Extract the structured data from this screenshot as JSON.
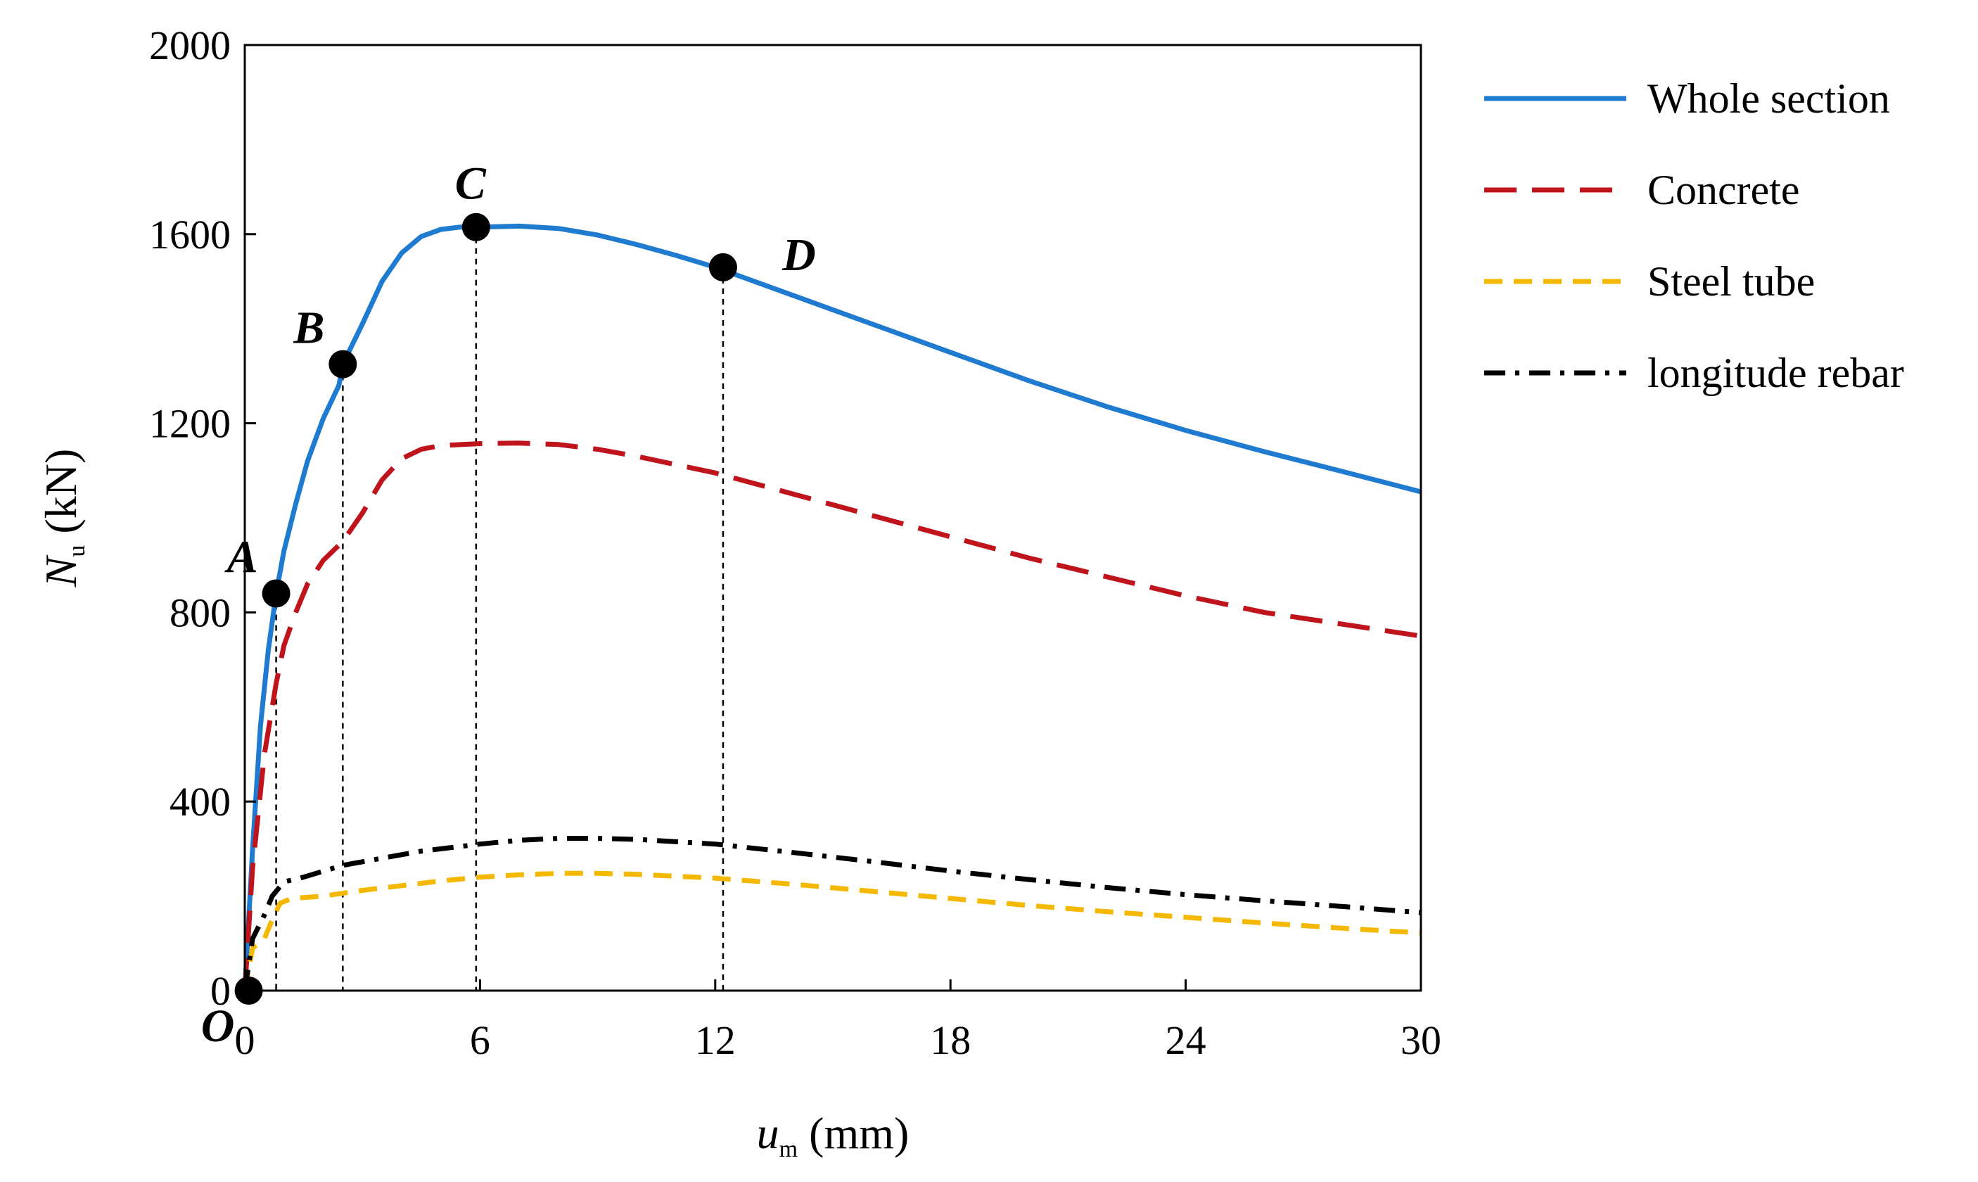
{
  "chart_data": {
    "type": "line",
    "title": "",
    "xlabel": {
      "main": "u",
      "sub": "m",
      "unit": " (mm)"
    },
    "ylabel": {
      "main": "N",
      "sub": "u",
      "unit": " (kN)"
    },
    "xlim": [
      0,
      30
    ],
    "ylim": [
      0,
      2000
    ],
    "xticks": [
      0,
      6,
      12,
      18,
      24,
      30
    ],
    "yticks": [
      0,
      400,
      800,
      1200,
      1600,
      2000
    ],
    "grid": false,
    "legend_position": "right",
    "series": [
      {
        "name": "Whole section",
        "color": "#1f7bd0",
        "style": "solid",
        "points": [
          [
            0,
            0
          ],
          [
            0.2,
            300
          ],
          [
            0.4,
            560
          ],
          [
            0.6,
            720
          ],
          [
            0.8,
            840
          ],
          [
            1.0,
            930
          ],
          [
            1.3,
            1030
          ],
          [
            1.6,
            1120
          ],
          [
            2.0,
            1210
          ],
          [
            2.4,
            1280
          ],
          [
            2.5,
            1325
          ],
          [
            3.0,
            1410
          ],
          [
            3.5,
            1500
          ],
          [
            4.0,
            1560
          ],
          [
            4.5,
            1595
          ],
          [
            5.0,
            1610
          ],
          [
            5.5,
            1615
          ],
          [
            6.0,
            1615
          ],
          [
            7.0,
            1617
          ],
          [
            8.0,
            1612
          ],
          [
            9.0,
            1598
          ],
          [
            10.0,
            1578
          ],
          [
            11.0,
            1555
          ],
          [
            12.0,
            1530
          ],
          [
            14.0,
            1470
          ],
          [
            16.0,
            1410
          ],
          [
            18.0,
            1350
          ],
          [
            20.0,
            1290
          ],
          [
            22.0,
            1235
          ],
          [
            24.0,
            1185
          ],
          [
            26.0,
            1140
          ],
          [
            28.0,
            1098
          ],
          [
            30.0,
            1055
          ]
        ]
      },
      {
        "name": "Concrete",
        "color": "#c0141c",
        "style": "longdash",
        "points": [
          [
            0,
            0
          ],
          [
            0.2,
            260
          ],
          [
            0.5,
            500
          ],
          [
            0.8,
            650
          ],
          [
            1.0,
            730
          ],
          [
            1.3,
            800
          ],
          [
            1.6,
            860
          ],
          [
            2.0,
            910
          ],
          [
            2.5,
            950
          ],
          [
            3.0,
            1010
          ],
          [
            3.5,
            1080
          ],
          [
            4.0,
            1125
          ],
          [
            4.5,
            1145
          ],
          [
            5.0,
            1153
          ],
          [
            6.0,
            1157
          ],
          [
            7.0,
            1158
          ],
          [
            8.0,
            1155
          ],
          [
            9.0,
            1145
          ],
          [
            10.0,
            1130
          ],
          [
            12.0,
            1095
          ],
          [
            14.0,
            1050
          ],
          [
            16.0,
            1005
          ],
          [
            18.0,
            960
          ],
          [
            20.0,
            915
          ],
          [
            22.0,
            875
          ],
          [
            24.0,
            835
          ],
          [
            26.0,
            800
          ],
          [
            28.0,
            775
          ],
          [
            30.0,
            750
          ]
        ]
      },
      {
        "name": "Steel tube",
        "color": "#f5b800",
        "style": "dash",
        "points": [
          [
            0,
            0
          ],
          [
            0.2,
            90
          ],
          [
            0.5,
            110
          ],
          [
            0.7,
            150
          ],
          [
            0.9,
            185
          ],
          [
            1.2,
            195
          ],
          [
            2.0,
            200
          ],
          [
            3.0,
            212
          ],
          [
            4.0,
            222
          ],
          [
            5.0,
            232
          ],
          [
            6.0,
            240
          ],
          [
            7.0,
            245
          ],
          [
            8.0,
            248
          ],
          [
            9.0,
            248
          ],
          [
            10.0,
            246
          ],
          [
            12.0,
            238
          ],
          [
            14.0,
            225
          ],
          [
            16.0,
            210
          ],
          [
            18.0,
            195
          ],
          [
            20.0,
            180
          ],
          [
            22.0,
            167
          ],
          [
            24.0,
            155
          ],
          [
            26.0,
            143
          ],
          [
            28.0,
            132
          ],
          [
            30.0,
            122
          ]
        ]
      },
      {
        "name": "longitude rebar",
        "color": "#000000",
        "style": "dashdot",
        "points": [
          [
            0,
            0
          ],
          [
            0.2,
            110
          ],
          [
            0.5,
            160
          ],
          [
            0.7,
            200
          ],
          [
            1.0,
            230
          ],
          [
            1.5,
            240
          ],
          [
            2.5,
            265
          ],
          [
            3.5,
            280
          ],
          [
            4.5,
            295
          ],
          [
            6.0,
            310
          ],
          [
            7.0,
            318
          ],
          [
            8.0,
            322
          ],
          [
            9.0,
            322
          ],
          [
            10.0,
            320
          ],
          [
            12.0,
            310
          ],
          [
            14.0,
            292
          ],
          [
            16.0,
            273
          ],
          [
            18.0,
            253
          ],
          [
            20.0,
            235
          ],
          [
            22.0,
            218
          ],
          [
            24.0,
            203
          ],
          [
            26.0,
            190
          ],
          [
            28.0,
            178
          ],
          [
            30.0,
            165
          ]
        ]
      }
    ],
    "key_points": [
      {
        "label": "O",
        "x": 0.1,
        "y": 0,
        "label_dir": "below-left"
      },
      {
        "label": "A",
        "x": 0.8,
        "y": 840,
        "label_dir": "above-left"
      },
      {
        "label": "B",
        "x": 2.5,
        "y": 1325,
        "label_dir": "above-left"
      },
      {
        "label": "C",
        "x": 5.9,
        "y": 1615,
        "label_dir": "above"
      },
      {
        "label": "D",
        "x": 12.2,
        "y": 1530,
        "label_dir": "right"
      }
    ],
    "drop_lines_x": [
      0.8,
      2.5,
      5.9,
      12.2
    ]
  }
}
